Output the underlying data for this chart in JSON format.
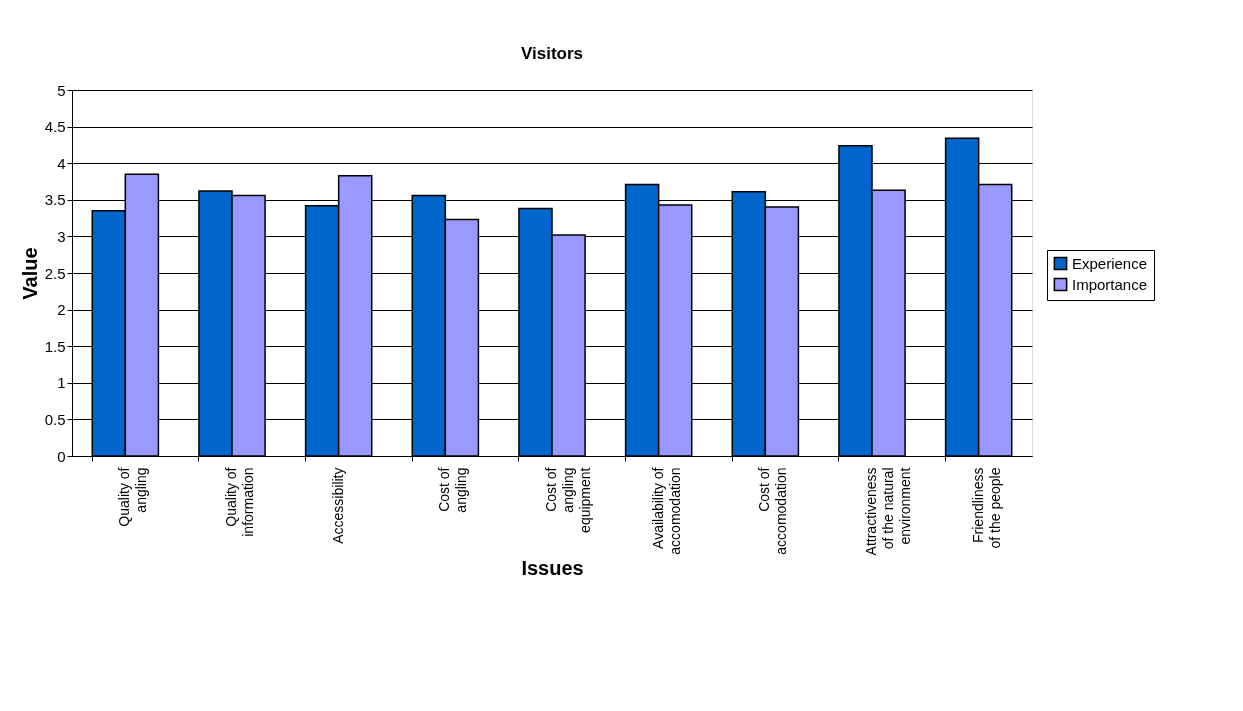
{
  "chart_data": {
    "type": "bar",
    "title": "Visitors",
    "xlabel": "Issues",
    "ylabel": "Value",
    "categories": [
      "Quality of\nangling",
      "Quality of\ninformation",
      "Accessibility",
      "Cost of\nangling",
      "Cost of\nangling\nequipment",
      "Availability of\naccomodation",
      "Cost of\naccomodation",
      "Attractiveness\nof the natural\nenvironment",
      "Friendliness\nof the people"
    ],
    "series": [
      {
        "name": "Experience",
        "color": "#0066cc",
        "values": [
          3.35,
          3.62,
          3.42,
          3.56,
          3.38,
          3.71,
          3.61,
          4.24,
          4.34
        ]
      },
      {
        "name": "Importance",
        "color": "#9999ff",
        "values": [
          3.85,
          3.56,
          3.83,
          3.23,
          3.02,
          3.43,
          3.4,
          3.63,
          3.71
        ]
      }
    ],
    "ylim": [
      0,
      5
    ],
    "yticks": [
      0,
      0.5,
      1,
      1.5,
      2,
      2.5,
      3,
      3.5,
      4,
      4.5,
      5
    ],
    "grid": "y",
    "legend": "right"
  }
}
